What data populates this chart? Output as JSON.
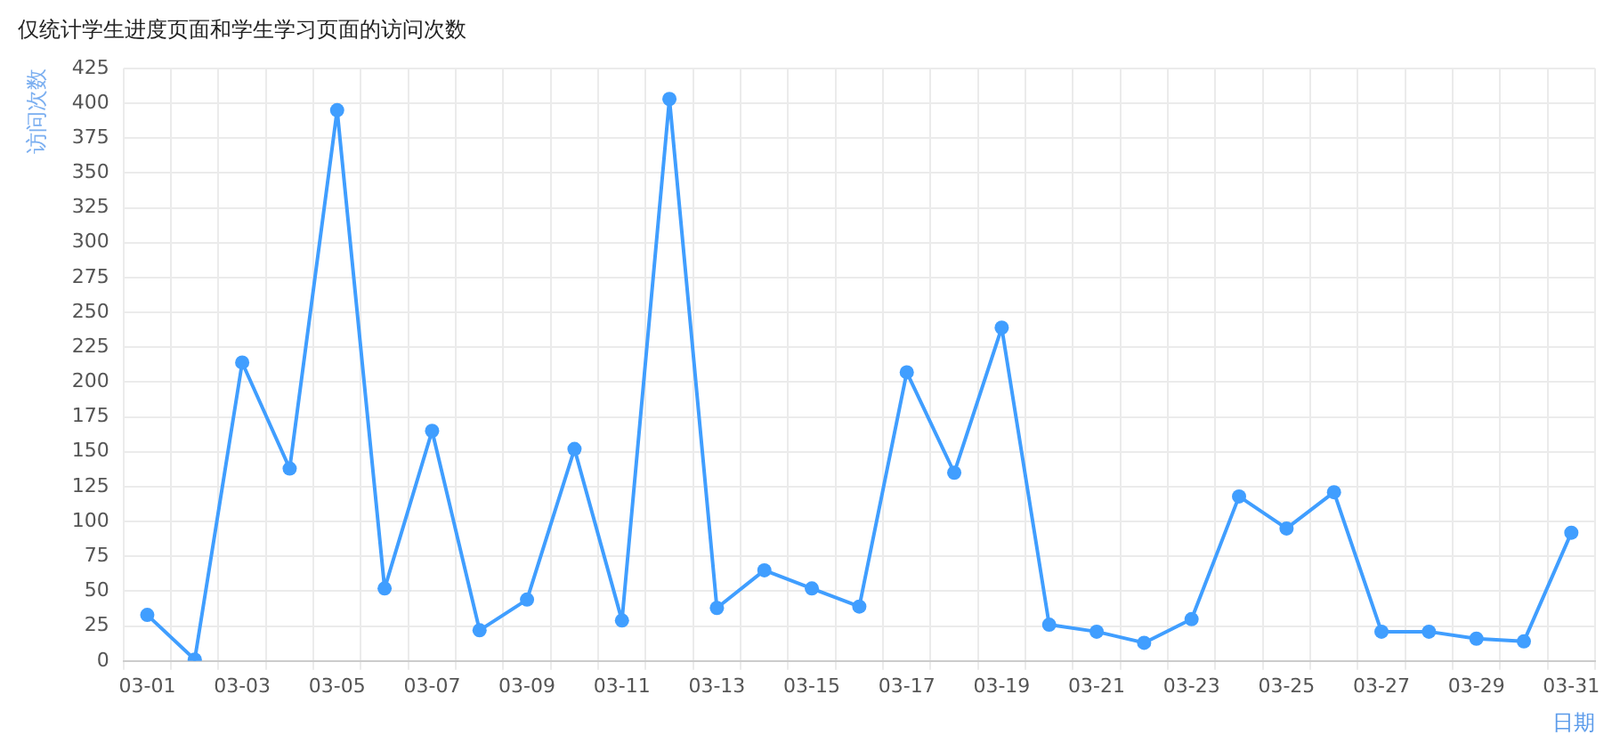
{
  "chart_data": {
    "type": "line",
    "title": "仅统计学生进度页面和学生学习页面的访问次数",
    "xlabel": "日期",
    "ylabel": "访问次数",
    "categories": [
      "03-01",
      null,
      "03-03",
      null,
      "03-05",
      null,
      "03-07",
      null,
      "03-09",
      null,
      "03-11",
      null,
      "03-13",
      null,
      "03-15",
      null,
      "03-17",
      null,
      "03-19",
      null,
      "03-21",
      null,
      "03-23",
      null,
      "03-25",
      null,
      "03-27",
      null,
      "03-29",
      null,
      "03-31"
    ],
    "series": [
      {
        "color": "#409eff",
        "values": [
          33,
          1,
          214,
          138,
          395,
          52,
          165,
          22,
          44,
          152,
          29,
          403,
          38,
          65,
          52,
          39,
          207,
          135,
          239,
          26,
          21,
          13,
          30,
          118,
          95,
          121,
          21,
          21,
          16,
          14,
          92
        ]
      }
    ],
    "ylim": [
      0,
      425
    ],
    "yticks": [
      0,
      25,
      50,
      75,
      100,
      125,
      150,
      175,
      200,
      225,
      250,
      275,
      300,
      325,
      350,
      375,
      400,
      425
    ],
    "grid": true,
    "legend": false,
    "marker": "circle",
    "line_style": "solid"
  }
}
